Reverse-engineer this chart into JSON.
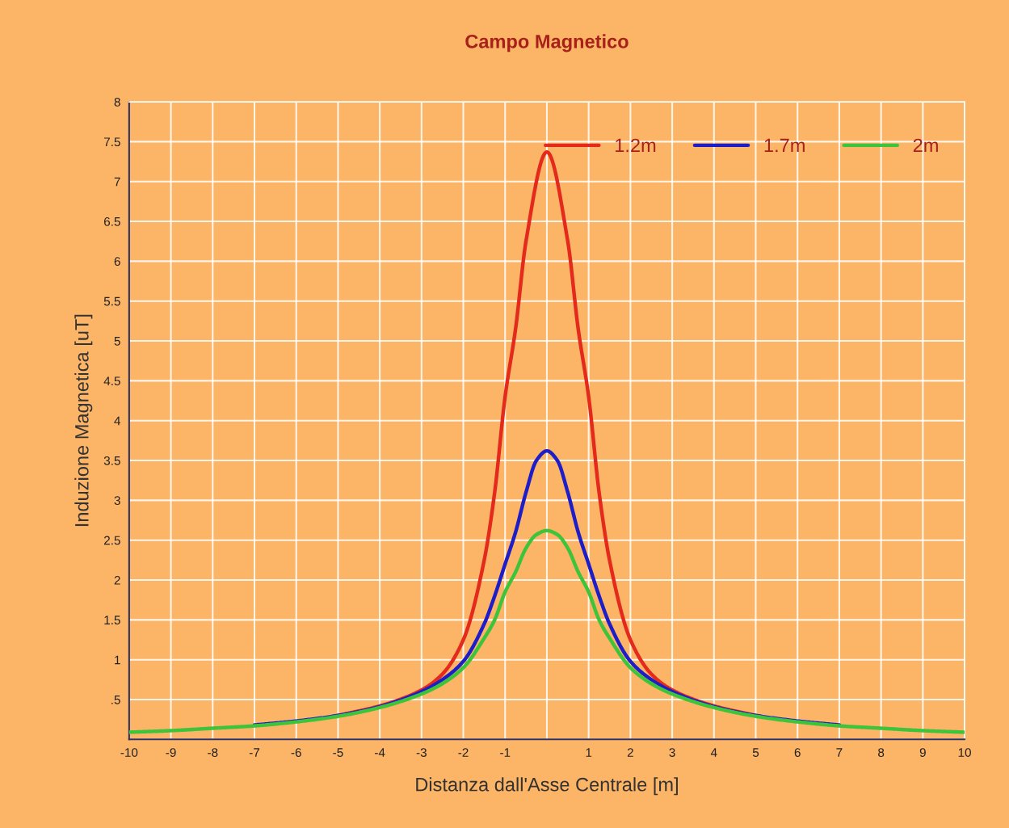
{
  "chart_data": {
    "type": "line",
    "title": "Campo Magnetico",
    "xlabel": "Distanza dall'Asse Centrale [m]",
    "ylabel": "Induzione Magnetica [uT]",
    "series": [
      {
        "name": "1.2m",
        "color": "#e42a1c",
        "x": [
          -5,
          -4,
          -3,
          -2.5,
          -2,
          -1.5,
          -1.25,
          -1,
          -0.75,
          -0.5,
          0,
          0.5,
          0.75,
          1,
          1.25,
          1.5,
          2,
          2.5,
          3,
          4,
          5
        ],
        "values": [
          0.3,
          0.42,
          0.62,
          0.82,
          1.25,
          2.25,
          3.1,
          4.3,
          5.15,
          6.25,
          7.37,
          6.25,
          5.15,
          4.3,
          3.1,
          2.25,
          1.25,
          0.82,
          0.62,
          0.42,
          0.3
        ]
      },
      {
        "name": "1.7m",
        "color": "#1e1ec8",
        "x": [
          -7,
          -6,
          -5,
          -4,
          -3,
          -2.5,
          -2,
          -1.5,
          -1.25,
          -1,
          -0.75,
          -0.5,
          -0.25,
          0,
          0.25,
          0.5,
          0.75,
          1,
          1.25,
          1.5,
          2,
          2.5,
          3,
          4,
          5,
          6,
          7
        ],
        "values": [
          0.18,
          0.23,
          0.3,
          0.41,
          0.6,
          0.75,
          0.98,
          1.45,
          1.8,
          2.2,
          2.6,
          3.1,
          3.5,
          3.62,
          3.5,
          3.1,
          2.6,
          2.2,
          1.8,
          1.45,
          0.98,
          0.75,
          0.6,
          0.41,
          0.3,
          0.23,
          0.18
        ]
      },
      {
        "name": "2m",
        "color": "#3ec43a",
        "x": [
          -10,
          -9,
          -8,
          -7,
          -6,
          -5,
          -4,
          -3,
          -2.5,
          -2,
          -1.5,
          -1.25,
          -1,
          -0.75,
          -0.5,
          -0.25,
          0,
          0.25,
          0.5,
          0.75,
          1,
          1.25,
          1.5,
          2,
          2.5,
          3,
          4,
          5,
          6,
          7,
          8,
          9,
          10
        ],
        "values": [
          0.09,
          0.11,
          0.14,
          0.17,
          0.22,
          0.29,
          0.4,
          0.57,
          0.7,
          0.9,
          1.27,
          1.5,
          1.85,
          2.1,
          2.4,
          2.57,
          2.62,
          2.57,
          2.4,
          2.1,
          1.85,
          1.5,
          1.27,
          0.9,
          0.7,
          0.57,
          0.4,
          0.29,
          0.22,
          0.17,
          0.14,
          0.11,
          0.09
        ]
      }
    ],
    "xlim": [
      -10,
      10
    ],
    "xticks": [
      -10,
      -9,
      -8,
      -7,
      -6,
      -5,
      -4,
      -3,
      -2,
      -1,
      {
        "value": 0,
        "label": null
      },
      1,
      2,
      3,
      4,
      5,
      6,
      7,
      8,
      9,
      10
    ],
    "ylim": [
      0,
      8
    ],
    "yticks": [
      {
        "value": 0,
        "label": null
      },
      {
        "value": 0.5,
        "label": ".5"
      },
      1,
      {
        "value": 1.5,
        "label": "1.5"
      },
      2,
      {
        "value": 2.5,
        "label": "2.5"
      },
      3,
      {
        "value": 3.5,
        "label": "3.5"
      },
      4,
      {
        "value": 4.5,
        "label": "4.5"
      },
      5,
      {
        "value": 5.5,
        "label": "5.5"
      },
      6,
      {
        "value": 6.5,
        "label": "6.5"
      },
      7,
      {
        "value": 7.5,
        "label": "7.5"
      },
      8
    ],
    "grid": true,
    "legend": "top right",
    "marker": "none",
    "line_style": "solid"
  }
}
